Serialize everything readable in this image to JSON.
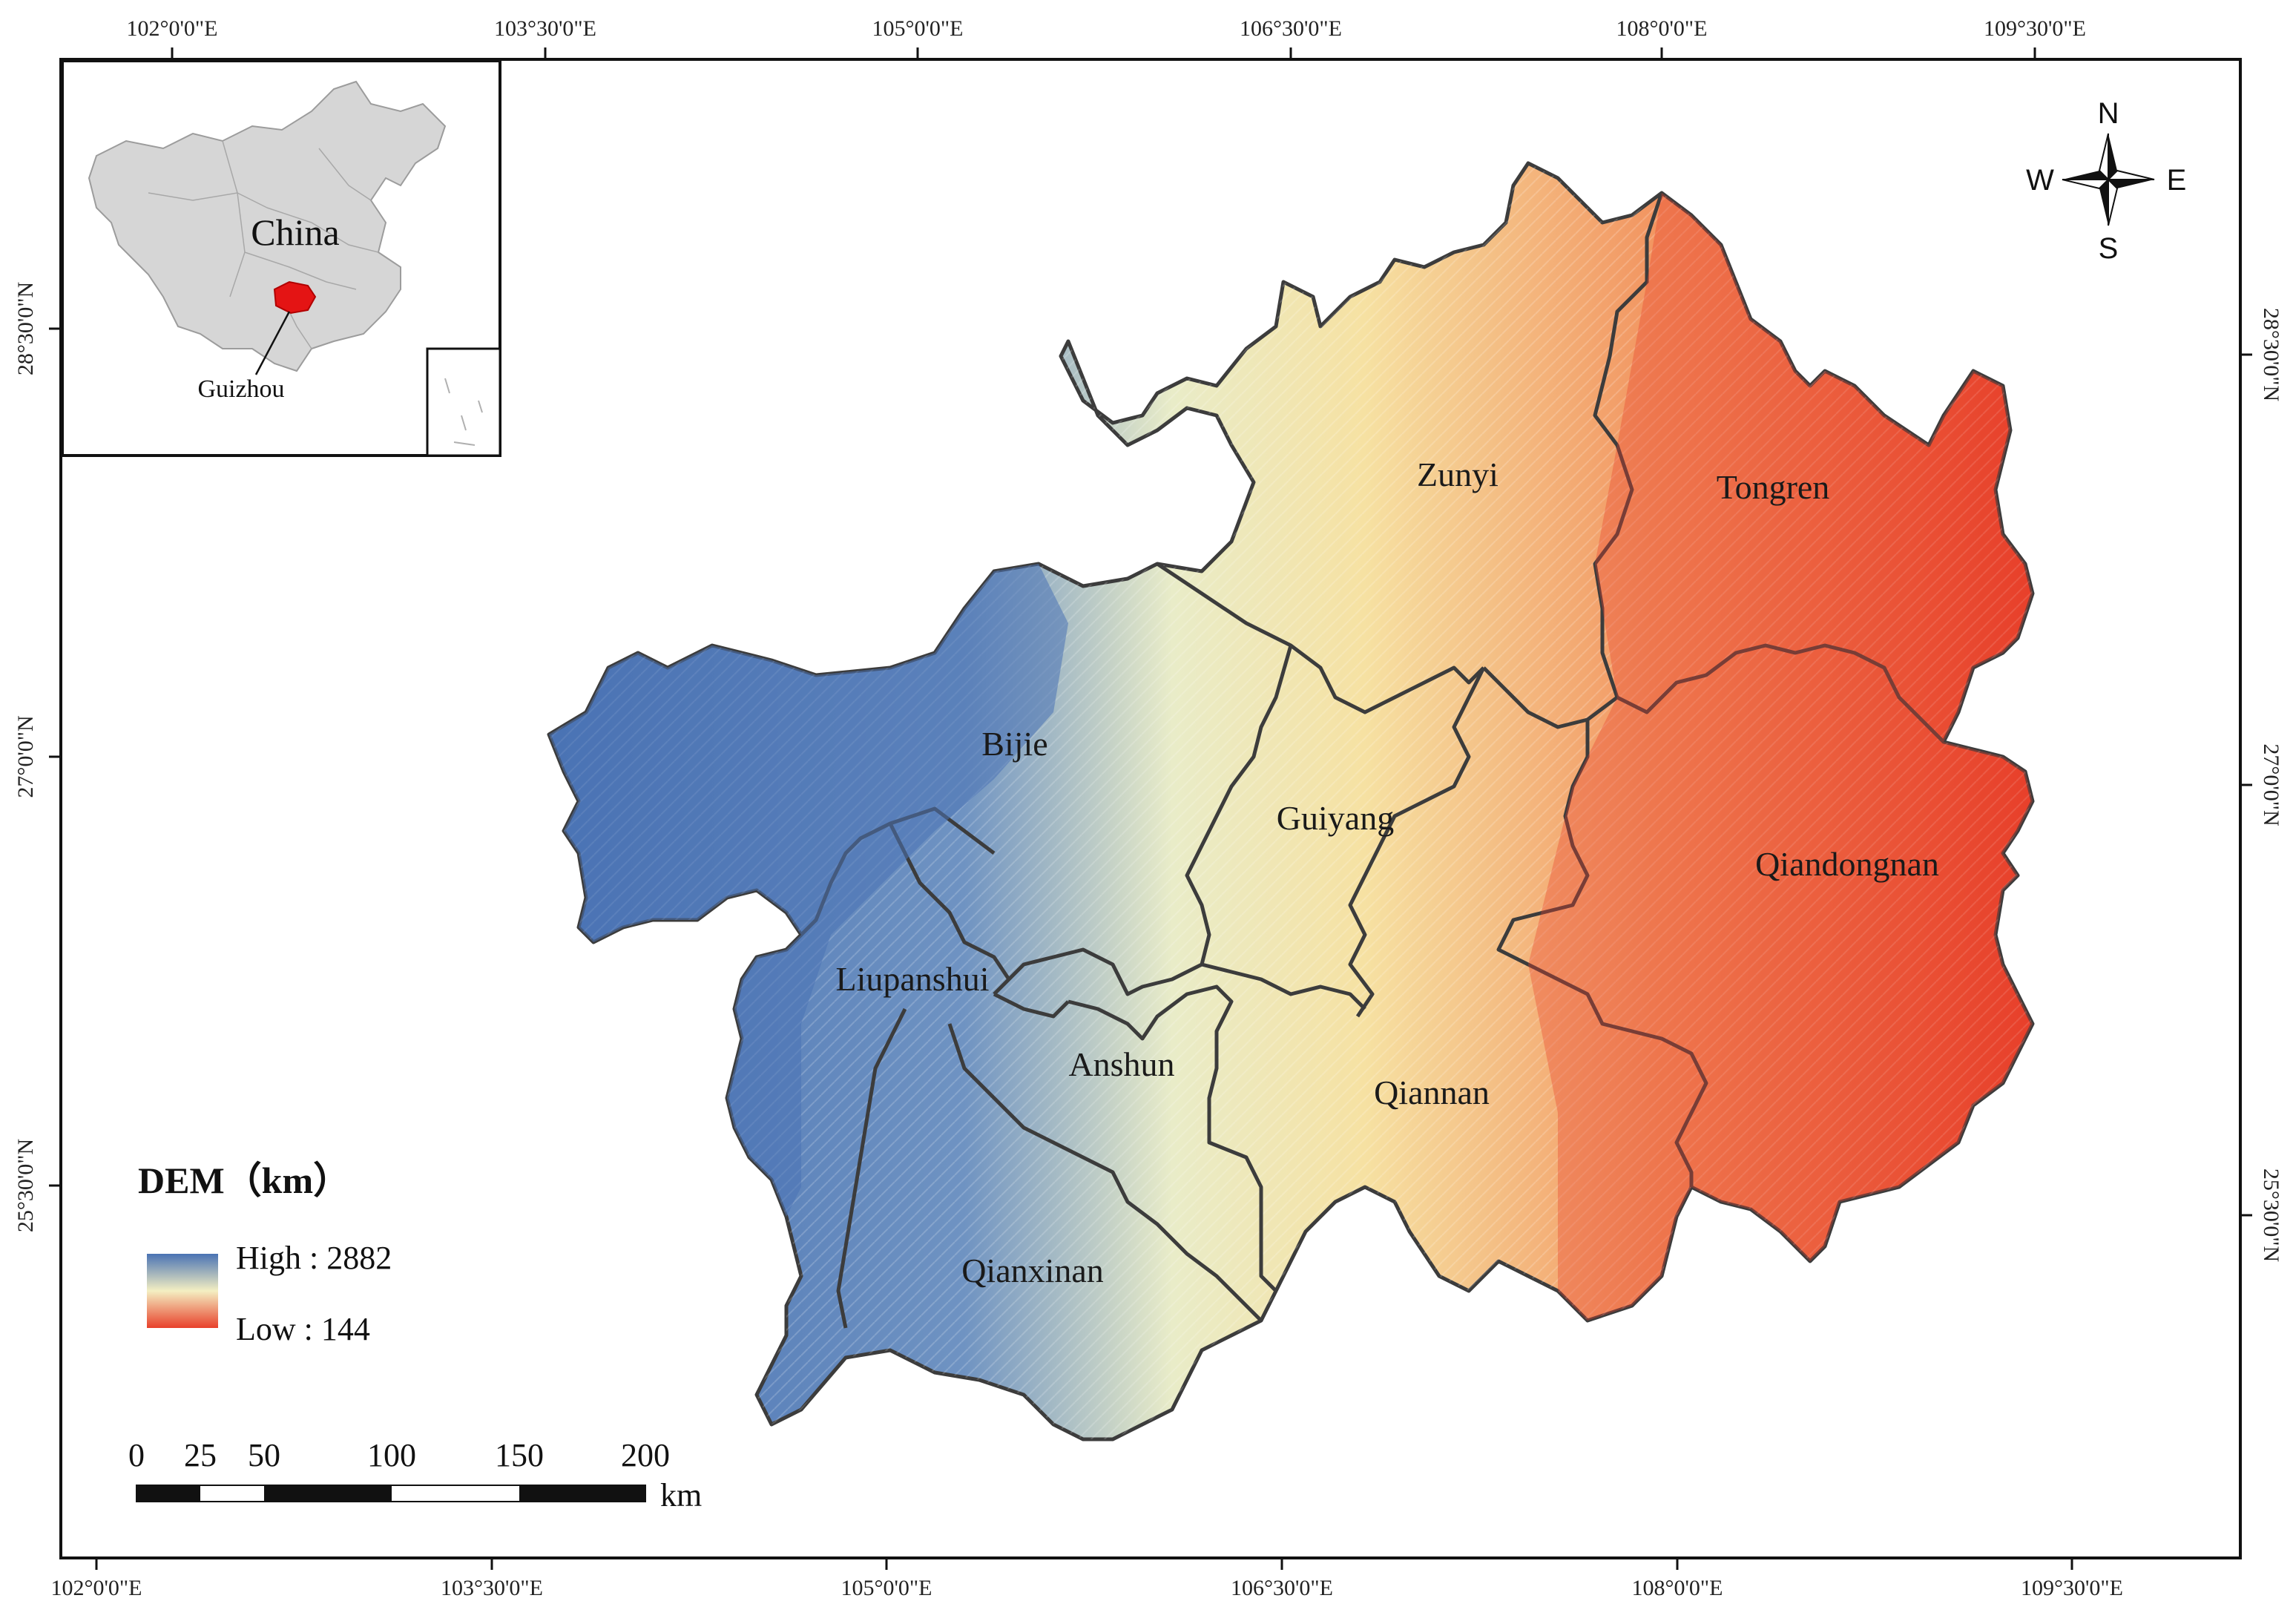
{
  "map": {
    "coords": {
      "top_lon": [
        "102°0'0\"E",
        "103°30'0\"E",
        "105°0'0\"E",
        "106°30'0\"E",
        "108°0'0\"E",
        "109°30'0\"E"
      ],
      "bottom_lon": [
        "102°0'0\"E",
        "103°30'0\"E",
        "105°0'0\"E",
        "106°30'0\"E",
        "108°0'0\"E",
        "109°30'0\"E"
      ],
      "left_lat": [
        "28°30'0\"N",
        "27°0'0\"N",
        "25°30'0\"N"
      ],
      "right_lat": [
        "28°30'0\"N",
        "27°0'0\"N",
        "25°30'0\"N"
      ]
    },
    "prefectures": [
      "Zunyi",
      "Tongren",
      "Bijie",
      "Guiyang",
      "Qiandongnan",
      "Liupanshui",
      "Anshun",
      "Qiannan",
      "Qianxinan"
    ],
    "inset": {
      "country": "China",
      "province": "Guizhou"
    },
    "compass": {
      "n": "N",
      "s": "S",
      "e": "E",
      "w": "W"
    },
    "legend": {
      "title": "DEM（km）",
      "high": "High : 2882",
      "low": "Low : 144",
      "color_high": "#4a73b4",
      "color_mid": "#f4efc2",
      "color_low": "#e8402a"
    },
    "scale": {
      "ticks": [
        "0",
        "25",
        "50",
        "100",
        "150",
        "200"
      ],
      "unit": "km"
    },
    "colors": {
      "low_elev": "#e8402a",
      "mid_elev": "#f6e2a4",
      "high_elev": "#4a73b4",
      "boundary": "#3c3c3c",
      "inset_highlight": "#e41414"
    }
  }
}
